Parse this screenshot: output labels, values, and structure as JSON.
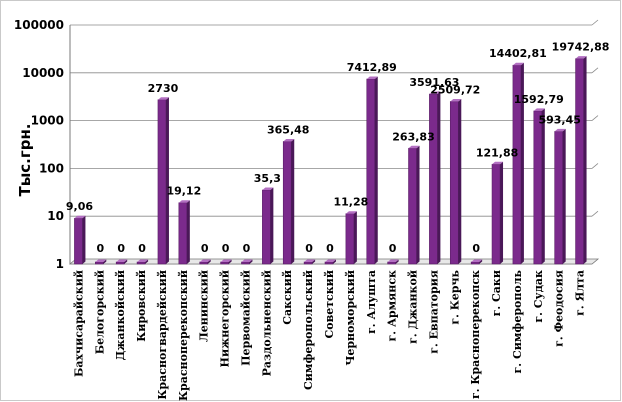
{
  "chart_data": {
    "type": "bar",
    "scale": "log",
    "ylabel": "Тыс.грн.",
    "ylim": [
      1,
      100000
    ],
    "yticks": [
      1,
      10,
      100,
      1000,
      10000,
      100000
    ],
    "ytick_labels": [
      "1",
      "10",
      "100",
      "1000",
      "10000",
      "100000"
    ],
    "grid": true,
    "legend": "none",
    "categories": [
      "Бахчисарайский",
      "Белогорский",
      "Джанкойский",
      "Кировский",
      "Красногвардейский",
      "Красноперекопский",
      "Ленинский",
      "Нижнегорский",
      "Первомайский",
      "Раздольненский",
      "Сакский",
      "Симферопольский",
      "Советский",
      "Черноморский",
      "г. Алушта",
      "г. Армянск",
      "г. Джанкой",
      "г. Евпатория",
      "г. Керчь",
      "г. Красноперекопск",
      "г. Саки",
      "г. Симферополь",
      "г. Судак",
      "г. Феодосия",
      "г. Ялта"
    ],
    "values": [
      9.06,
      0,
      0,
      0,
      2730,
      19.12,
      0,
      0,
      0,
      35.3,
      365.48,
      0,
      0,
      11.28,
      7412.89,
      0,
      263.83,
      3591.63,
      2509.72,
      0,
      121.88,
      14402.81,
      1592.79,
      593.45,
      19742.88
    ],
    "data_labels": [
      "9,06",
      "0",
      "0",
      "0",
      "2730",
      "19,12",
      "0",
      "0",
      "0",
      "35,3",
      "365,48",
      "0",
      "0",
      "11,28",
      "7412,89",
      "0",
      "263,83",
      "3591,63",
      "2509,72",
      "0",
      "121,88",
      "14402,81",
      "1592,79",
      "593,45",
      "19742,88"
    ],
    "colors": {
      "bar": "#7b2a8c",
      "bar_side": "#4a1858",
      "bar_top": "#b36fc2",
      "grid": "#8a8a8a"
    }
  }
}
